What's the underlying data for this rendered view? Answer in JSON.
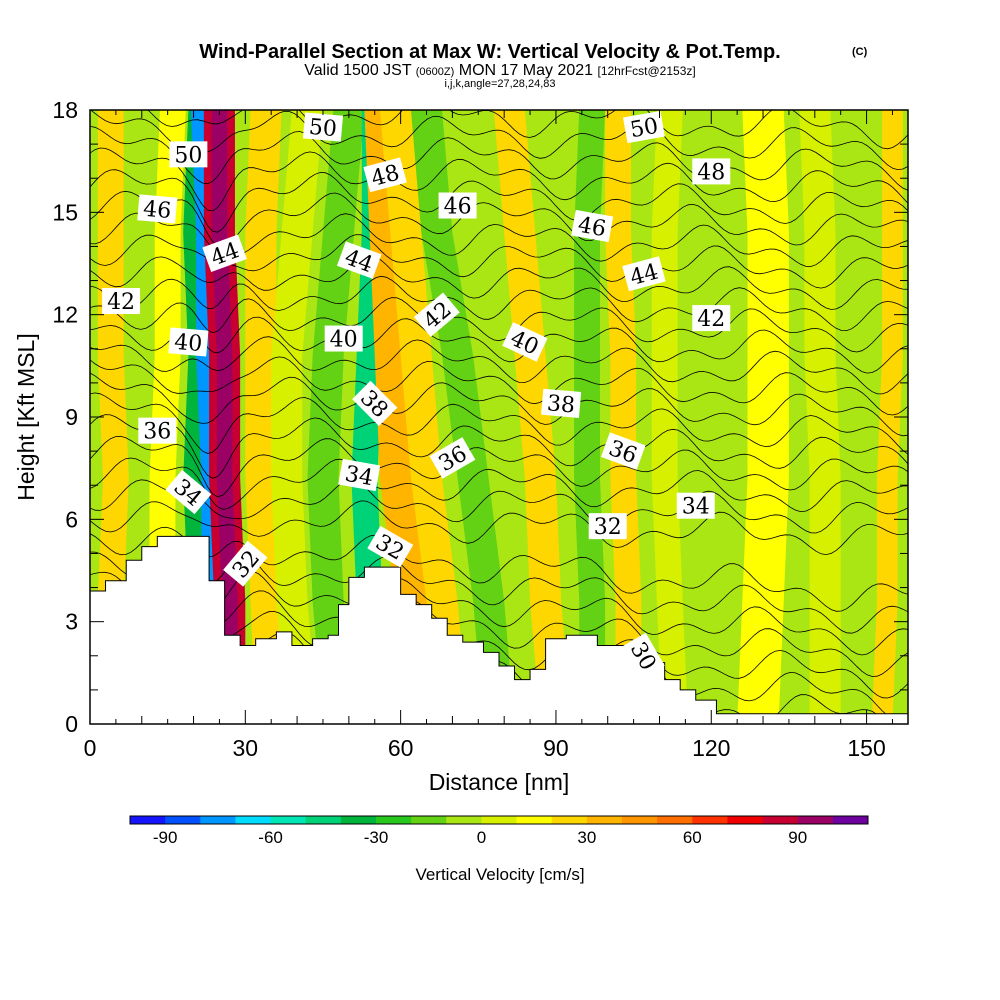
{
  "chart_data": {
    "type": "heatmap",
    "title": "Wind-Parallel Section at Max W: Vertical Velocity & Pot.Temp.",
    "title_mark": "(C)",
    "subtitle_main_1": "Valid 1500 JST",
    "subtitle_paren": "(0600Z)",
    "subtitle_main_2": "MON 17 May 2021",
    "subtitle_fcst": "[12hrFcst@2153z]",
    "subtitle_2": "i,j,k,angle=27,28,24,83",
    "xlabel": "Distance [nm]",
    "ylabel": "Height [Kft MSL]",
    "xlim": [
      0,
      158
    ],
    "ylim": [
      0,
      18
    ],
    "x_ticks": [
      "0",
      "30",
      "60",
      "90",
      "120",
      "150"
    ],
    "y_ticks": [
      "0",
      "3",
      "6",
      "9",
      "12",
      "15",
      "18"
    ],
    "colorbar": {
      "label": "Vertical Velocity [cm/s]",
      "min": -100,
      "max": 110,
      "step": 10,
      "tick_labels": [
        "-90",
        "-60",
        "-30",
        "0",
        "30",
        "60",
        "90"
      ],
      "colors": [
        "#1414ff",
        "#0050ff",
        "#0096ff",
        "#00dcff",
        "#00e6b4",
        "#00d278",
        "#00b43c",
        "#28c81e",
        "#64d214",
        "#aae614",
        "#d7f000",
        "#ffff00",
        "#ffd700",
        "#ffb400",
        "#ff9600",
        "#ff6e00",
        "#ff3200",
        "#f00000",
        "#c80032",
        "#9b0064",
        "#6e00a0"
      ]
    },
    "topography_kft": [
      [
        0,
        3.9
      ],
      [
        3,
        4.2
      ],
      [
        7,
        4.8
      ],
      [
        10,
        5.2
      ],
      [
        13,
        5.5
      ],
      [
        20,
        5.5
      ],
      [
        23,
        4.2
      ],
      [
        26,
        2.6
      ],
      [
        29,
        2.3
      ],
      [
        32,
        2.5
      ],
      [
        36,
        2.7
      ],
      [
        39,
        2.3
      ],
      [
        43,
        2.5
      ],
      [
        46,
        2.6
      ],
      [
        48,
        3.5
      ],
      [
        50,
        4.3
      ],
      [
        53,
        4.6
      ],
      [
        58,
        4.6
      ],
      [
        60,
        3.8
      ],
      [
        63,
        3.5
      ],
      [
        66,
        3.1
      ],
      [
        69,
        2.6
      ],
      [
        72,
        2.4
      ],
      [
        76,
        2.1
      ],
      [
        79,
        1.7
      ],
      [
        82,
        1.3
      ],
      [
        85,
        1.6
      ],
      [
        88,
        2.5
      ],
      [
        92,
        2.6
      ],
      [
        98,
        2.3
      ],
      [
        104,
        2.2
      ],
      [
        108,
        1.8
      ],
      [
        111,
        1.3
      ],
      [
        114,
        1.0
      ],
      [
        117,
        0.7
      ],
      [
        121,
        0.3
      ],
      [
        158,
        0.3
      ]
    ],
    "velocity_bands": [
      {
        "x": [
          0,
          4,
          5,
          4,
          4,
          4
        ],
        "w": 5,
        "v": 20
      },
      {
        "x": [
          8,
          9,
          10,
          10,
          10,
          10
        ],
        "w": 4,
        "v": -10
      },
      {
        "x": [
          13,
          14,
          14,
          15,
          15,
          16
        ],
        "w": 5,
        "v": 15
      },
      {
        "x": [
          20,
          21,
          20,
          21,
          20,
          21
        ],
        "w": 4,
        "v": -40
      },
      {
        "x": [
          22,
          23,
          23,
          22,
          22,
          21
        ],
        "w": 3,
        "v": -80
      },
      {
        "x": [
          27,
          27,
          26,
          26,
          25,
          25
        ],
        "w": 6,
        "v": 80
      },
      {
        "x": [
          27,
          27,
          26,
          26,
          25,
          25
        ],
        "w": 3,
        "v": 95
      },
      {
        "x": [
          35,
          34,
          33,
          33,
          33,
          34
        ],
        "w": 6,
        "v": 20
      },
      {
        "x": [
          41,
          39,
          38,
          38,
          40,
          42
        ],
        "w": 6,
        "v": 0
      },
      {
        "x": [
          48,
          46,
          45,
          46,
          48,
          50
        ],
        "w": 6,
        "v": -20
      },
      {
        "x": [
          56,
          54,
          53,
          54,
          55,
          55
        ],
        "w": 5,
        "v": -50
      },
      {
        "x": [
          64,
          62,
          59,
          58,
          57,
          56
        ],
        "w": 6,
        "v": 35
      },
      {
        "x": [
          70,
          68,
          65,
          63,
          61,
          59
        ],
        "w": 6,
        "v": 20
      },
      {
        "x": [
          79,
          77,
          74,
          71,
          67,
          65
        ],
        "w": 6,
        "v": -15
      },
      {
        "x": [
          90,
          88,
          87,
          85,
          83,
          81
        ],
        "w": 6,
        "v": 20
      },
      {
        "x": [
          97,
          97,
          96,
          96,
          96,
          97
        ],
        "w": 5,
        "v": -20
      },
      {
        "x": [
          104,
          104,
          103,
          103,
          102,
          102
        ],
        "w": 5,
        "v": 20
      },
      {
        "x": [
          113,
          112,
          111,
          111,
          111,
          112
        ],
        "w": 5,
        "v": 0
      },
      {
        "x": [
          129,
          130,
          131,
          131,
          131,
          130
        ],
        "w": 8,
        "v": 10
      },
      {
        "x": [
          142,
          142,
          142,
          141,
          141,
          140
        ],
        "w": 6,
        "v": 5
      },
      {
        "x": [
          153,
          154,
          154,
          155,
          155,
          155
        ],
        "w": 4,
        "v": 20
      }
    ],
    "theta_contour_labels": [
      {
        "text": "50",
        "x": 19,
        "y": 16.7,
        "rot": 0
      },
      {
        "text": "50",
        "x": 45,
        "y": 17.5,
        "rot": 5
      },
      {
        "text": "50",
        "x": 107,
        "y": 17.5,
        "rot": -10
      },
      {
        "text": "48",
        "x": 57,
        "y": 16.1,
        "rot": -15
      },
      {
        "text": "48",
        "x": 120,
        "y": 16.2,
        "rot": 0
      },
      {
        "text": "46",
        "x": 13,
        "y": 15.1,
        "rot": 5
      },
      {
        "text": "46",
        "x": 71,
        "y": 15.2,
        "rot": 0
      },
      {
        "text": "46",
        "x": 97,
        "y": 14.6,
        "rot": 10
      },
      {
        "text": "44",
        "x": 26,
        "y": 13.8,
        "rot": -20
      },
      {
        "text": "44",
        "x": 52,
        "y": 13.6,
        "rot": 20
      },
      {
        "text": "44",
        "x": 107,
        "y": 13.2,
        "rot": -15
      },
      {
        "text": "42",
        "x": 6,
        "y": 12.4,
        "rot": 0
      },
      {
        "text": "42",
        "x": 67,
        "y": 12.0,
        "rot": -40
      },
      {
        "text": "42",
        "x": 120,
        "y": 11.9,
        "rot": 0
      },
      {
        "text": "40",
        "x": 19,
        "y": 11.2,
        "rot": 5
      },
      {
        "text": "40",
        "x": 49,
        "y": 11.3,
        "rot": 0
      },
      {
        "text": "40",
        "x": 84,
        "y": 11.2,
        "rot": 25
      },
      {
        "text": "38",
        "x": 55,
        "y": 9.4,
        "rot": 45
      },
      {
        "text": "38",
        "x": 91,
        "y": 9.4,
        "rot": 5
      },
      {
        "text": "36",
        "x": 13,
        "y": 8.6,
        "rot": 0
      },
      {
        "text": "36",
        "x": 70,
        "y": 7.8,
        "rot": -30
      },
      {
        "text": "36",
        "x": 103,
        "y": 8.0,
        "rot": 20
      },
      {
        "text": "34",
        "x": 19,
        "y": 6.8,
        "rot": 40
      },
      {
        "text": "34",
        "x": 52,
        "y": 7.3,
        "rot": 10
      },
      {
        "text": "34",
        "x": 117,
        "y": 6.4,
        "rot": 0
      },
      {
        "text": "32",
        "x": 30,
        "y": 4.7,
        "rot": -50
      },
      {
        "text": "32",
        "x": 58,
        "y": 5.2,
        "rot": 30
      },
      {
        "text": "32",
        "x": 100,
        "y": 5.8,
        "rot": 0
      },
      {
        "text": "30",
        "x": 107,
        "y": 2.0,
        "rot": 60
      }
    ]
  }
}
